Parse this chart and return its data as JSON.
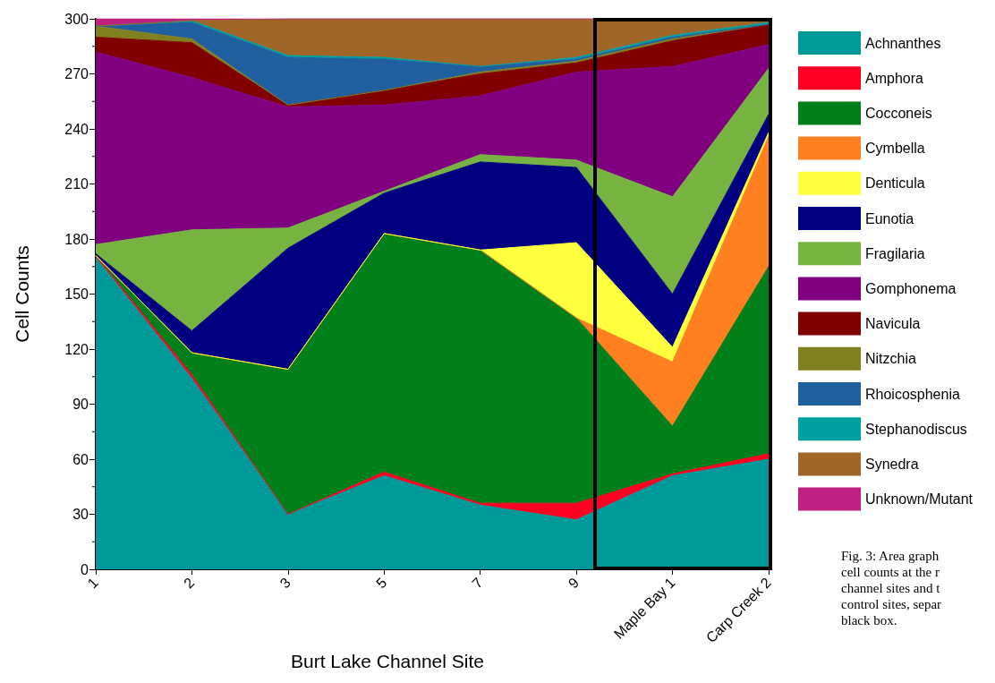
{
  "chart_data": {
    "type": "area",
    "stacked": true,
    "xlabel": "Burt Lake Channel Site",
    "ylabel": "Cell Counts",
    "categories": [
      "1",
      "2",
      "3",
      "5",
      "7",
      "9",
      "Maple Bay 1",
      "Carp Creek 2"
    ],
    "ylim": [
      0,
      300
    ],
    "yticks": [
      0,
      30,
      60,
      90,
      120,
      150,
      180,
      210,
      240,
      270,
      300
    ],
    "legend": "right",
    "marker": "none",
    "series": [
      {
        "name": "Achnanthes",
        "color": "#009999",
        "values": [
          170,
          104,
          30,
          51,
          35,
          27,
          51,
          60
        ]
      },
      {
        "name": "Amphora",
        "color": "#ff0022",
        "values": [
          1,
          2,
          0,
          2,
          1,
          9,
          1,
          3
        ]
      },
      {
        "name": "Cocconeis",
        "color": "#007f1a",
        "values": [
          0,
          12,
          79,
          130,
          138,
          101,
          26,
          102
        ]
      },
      {
        "name": "Cymbella",
        "color": "#ff8020",
        "values": [
          0,
          0,
          0,
          0,
          0,
          0,
          35,
          71
        ]
      },
      {
        "name": "Denticula",
        "color": "#ffff40",
        "values": [
          0,
          0,
          0,
          0,
          0,
          41,
          8,
          2
        ]
      },
      {
        "name": "Eunotia",
        "color": "#000080",
        "values": [
          1,
          12,
          66,
          22,
          48,
          41,
          29,
          10
        ]
      },
      {
        "name": "Fragilaria",
        "color": "#77b340",
        "values": [
          5,
          55,
          11,
          1,
          4,
          4,
          53,
          25
        ]
      },
      {
        "name": "Gomphonema",
        "color": "#800080",
        "values": [
          105,
          83,
          66,
          47,
          32,
          48,
          71,
          13
        ]
      },
      {
        "name": "Navicula",
        "color": "#800000",
        "values": [
          8,
          19,
          1,
          8,
          12,
          5,
          14,
          11
        ]
      },
      {
        "name": "Nitzchia",
        "color": "#808020",
        "values": [
          6,
          2,
          0,
          0,
          1,
          1,
          1,
          0
        ]
      },
      {
        "name": "Rhoicosphenia",
        "color": "#2060a0",
        "values": [
          0,
          9,
          26,
          17,
          3,
          1,
          1,
          0
        ]
      },
      {
        "name": "Stephanodiscus",
        "color": "#00a0a0",
        "values": [
          0,
          1,
          1,
          1,
          0,
          1,
          1,
          1
        ]
      },
      {
        "name": "Synedra",
        "color": "#a06628",
        "values": [
          0,
          0,
          20,
          21,
          26,
          21,
          9,
          1
        ]
      },
      {
        "name": "Unknown/Mutant",
        "color": "#c02080",
        "values": [
          4,
          1,
          0,
          0,
          0,
          0,
          0,
          0
        ]
      }
    ],
    "annotations": [
      "Fig. 3: Area graph\ncell counts at the r\nchannel sites and t\ncontrol sites, separ\nblack box."
    ]
  }
}
